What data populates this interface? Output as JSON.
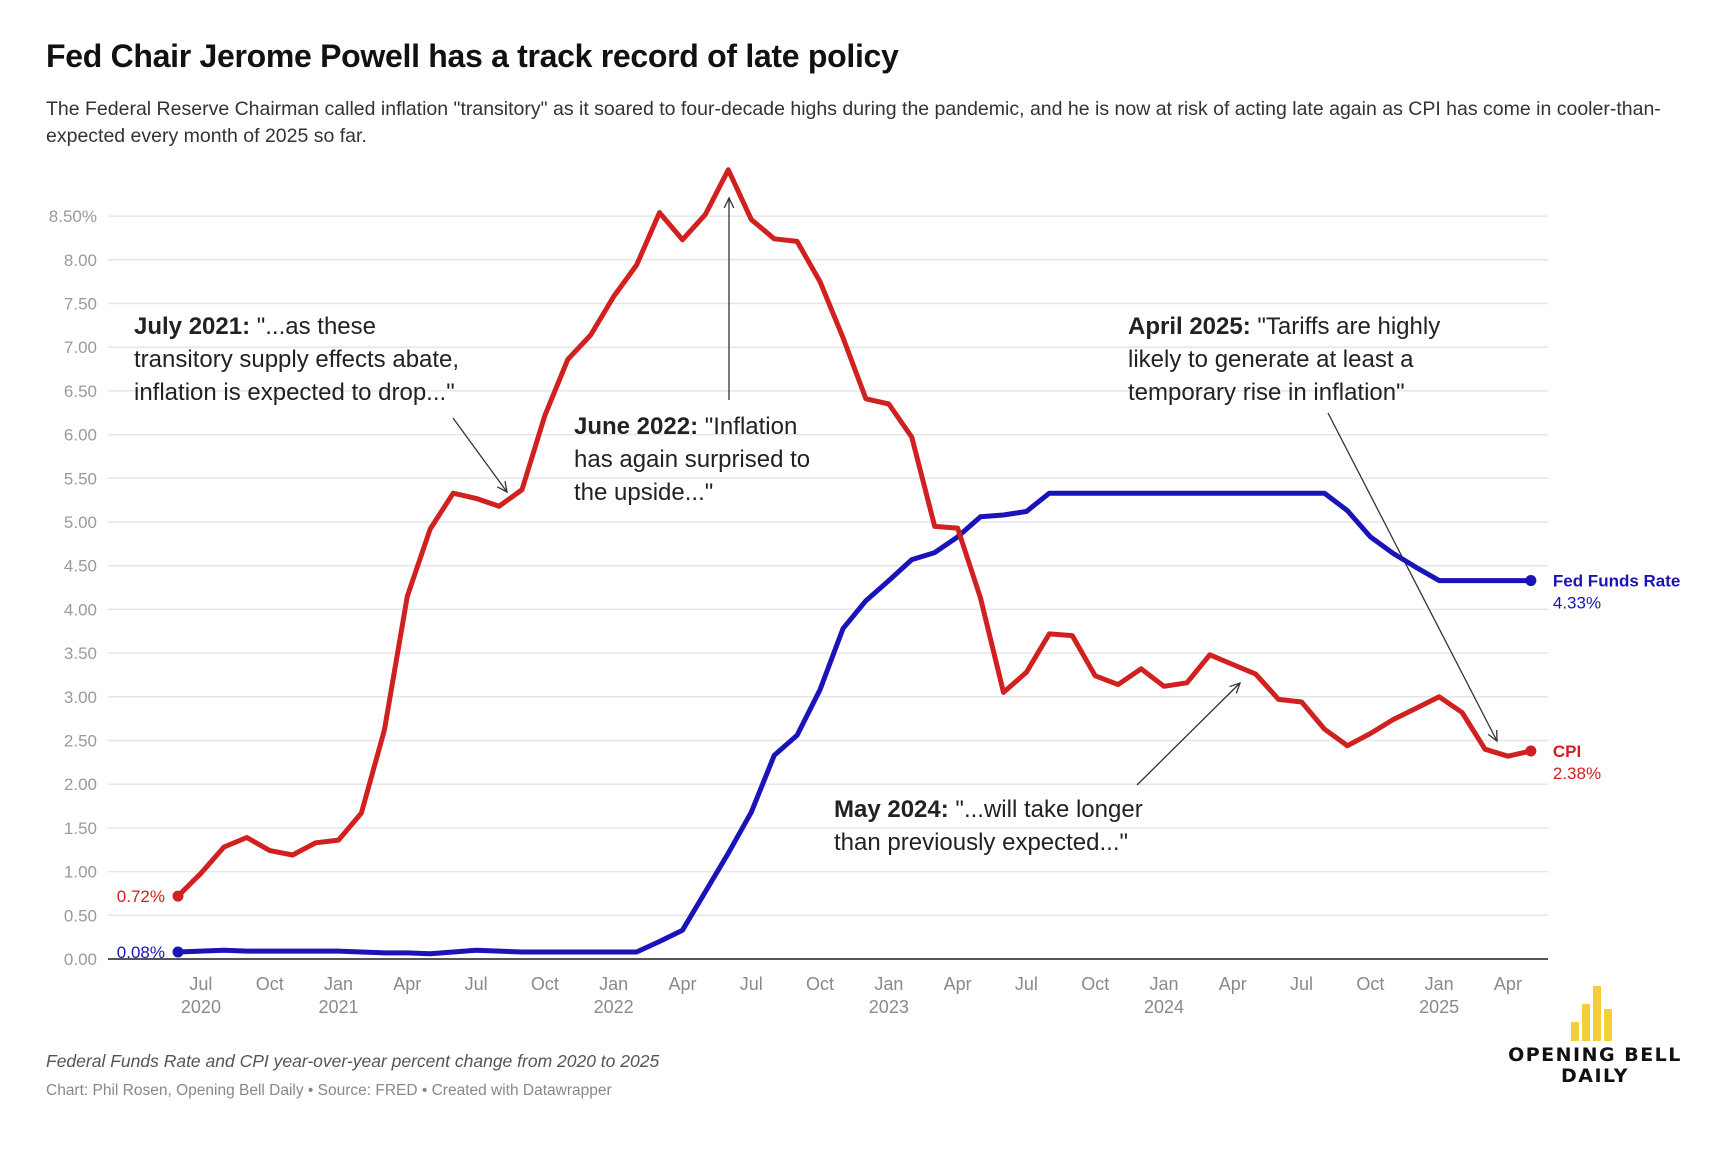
{
  "header": {
    "title": "Fed Chair Jerome Powell has a track record of late policy",
    "subtitle": "The Federal Reserve Chairman called inflation \"transitory\" as it soared to four-decade highs during the pandemic, and he is now at risk of acting late again as CPI has come in cooler-than-expected every month of 2025 so far."
  },
  "footer": {
    "note": "Federal Funds Rate and CPI year-over-year percent change from 2020 to 2025",
    "credit": "Chart: Phil Rosen, Opening Bell Daily • Source: FRED • Created with Datawrapper"
  },
  "logo": {
    "line1": "OPENING BELL",
    "line2": "DAILY",
    "color": "#f5cf3a",
    "icon": "bar-chart-icon"
  },
  "colors": {
    "cpi": "#d0201f",
    "fed": "#1a14b8",
    "grid": "#e6e6e6",
    "axis": "#555555"
  },
  "chart_data": {
    "type": "line",
    "title": "Fed Chair Jerome Powell has a track record of late policy",
    "xlabel": "",
    "ylabel": "",
    "ylim": [
      0,
      8.5
    ],
    "grid": true,
    "y_ticks": [
      "0.00",
      "0.50",
      "1.00",
      "1.50",
      "2.00",
      "2.50",
      "3.00",
      "3.50",
      "4.00",
      "4.50",
      "5.00",
      "5.50",
      "6.00",
      "6.50",
      "7.00",
      "7.50",
      "8.00",
      "8.50%"
    ],
    "y_tick_values": [
      0,
      0.5,
      1,
      1.5,
      2,
      2.5,
      3,
      3.5,
      4,
      4.5,
      5,
      5.5,
      6,
      6.5,
      7,
      7.5,
      8,
      8.5
    ],
    "x_start": "2020-06",
    "x": [
      "2020-06",
      "2020-07",
      "2020-08",
      "2020-09",
      "2020-10",
      "2020-11",
      "2020-12",
      "2021-01",
      "2021-02",
      "2021-03",
      "2021-04",
      "2021-05",
      "2021-06",
      "2021-07",
      "2021-08",
      "2021-09",
      "2021-10",
      "2021-11",
      "2021-12",
      "2022-01",
      "2022-02",
      "2022-03",
      "2022-04",
      "2022-05",
      "2022-06",
      "2022-07",
      "2022-08",
      "2022-09",
      "2022-10",
      "2022-11",
      "2022-12",
      "2023-01",
      "2023-02",
      "2023-03",
      "2023-04",
      "2023-05",
      "2023-06",
      "2023-07",
      "2023-08",
      "2023-09",
      "2023-10",
      "2023-11",
      "2023-12",
      "2024-01",
      "2024-02",
      "2024-03",
      "2024-04",
      "2024-05",
      "2024-06",
      "2024-07",
      "2024-08",
      "2024-09",
      "2024-10",
      "2024-11",
      "2024-12",
      "2025-01",
      "2025-02",
      "2025-03",
      "2025-04",
      "2025-05"
    ],
    "x_ticks": [
      {
        "month": "2020-07",
        "label": "Jul",
        "year": "2020"
      },
      {
        "month": "2020-10",
        "label": "Oct",
        "year": ""
      },
      {
        "month": "2021-01",
        "label": "Jan",
        "year": "2021"
      },
      {
        "month": "2021-04",
        "label": "Apr",
        "year": ""
      },
      {
        "month": "2021-07",
        "label": "Jul",
        "year": ""
      },
      {
        "month": "2021-10",
        "label": "Oct",
        "year": ""
      },
      {
        "month": "2022-01",
        "label": "Jan",
        "year": "2022"
      },
      {
        "month": "2022-04",
        "label": "Apr",
        "year": ""
      },
      {
        "month": "2022-07",
        "label": "Jul",
        "year": ""
      },
      {
        "month": "2022-10",
        "label": "Oct",
        "year": ""
      },
      {
        "month": "2023-01",
        "label": "Jan",
        "year": "2023"
      },
      {
        "month": "2023-04",
        "label": "Apr",
        "year": ""
      },
      {
        "month": "2023-07",
        "label": "Jul",
        "year": ""
      },
      {
        "month": "2023-10",
        "label": "Oct",
        "year": ""
      },
      {
        "month": "2024-01",
        "label": "Jan",
        "year": "2024"
      },
      {
        "month": "2024-04",
        "label": "Apr",
        "year": ""
      },
      {
        "month": "2024-07",
        "label": "Jul",
        "year": ""
      },
      {
        "month": "2024-10",
        "label": "Oct",
        "year": ""
      },
      {
        "month": "2025-01",
        "label": "Jan",
        "year": "2025"
      },
      {
        "month": "2025-04",
        "label": "Apr",
        "year": ""
      }
    ],
    "series": [
      {
        "name": "CPI",
        "color": "#d0201f",
        "start_label": "0.72%",
        "end_label": "2.38%",
        "values": [
          0.72,
          0.98,
          1.28,
          1.39,
          1.24,
          1.19,
          1.33,
          1.36,
          1.67,
          2.62,
          4.15,
          4.92,
          5.33,
          5.27,
          5.18,
          5.37,
          6.22,
          6.86,
          7.14,
          7.58,
          7.94,
          8.54,
          8.23,
          8.52,
          9.03,
          8.46,
          8.24,
          8.21,
          7.75,
          7.11,
          6.41,
          6.35,
          5.97,
          4.95,
          4.93,
          4.13,
          3.05,
          3.28,
          3.72,
          3.7,
          3.24,
          3.14,
          3.32,
          3.12,
          3.16,
          3.48,
          3.37,
          3.26,
          2.97,
          2.94,
          2.63,
          2.44,
          2.58,
          2.74,
          2.87,
          3.0,
          2.82,
          2.4,
          2.32,
          2.38
        ]
      },
      {
        "name": "Fed Funds Rate",
        "color": "#1a14b8",
        "start_label": "0.08%",
        "end_label": "4.33%",
        "values": [
          0.08,
          0.09,
          0.1,
          0.09,
          0.09,
          0.09,
          0.09,
          0.09,
          0.08,
          0.07,
          0.07,
          0.06,
          0.08,
          0.1,
          0.09,
          0.08,
          0.08,
          0.08,
          0.08,
          0.08,
          0.08,
          0.2,
          0.33,
          0.77,
          1.21,
          1.68,
          2.33,
          2.56,
          3.08,
          3.78,
          4.1,
          4.33,
          4.57,
          4.65,
          4.83,
          5.06,
          5.08,
          5.12,
          5.33,
          5.33,
          5.33,
          5.33,
          5.33,
          5.33,
          5.33,
          5.33,
          5.33,
          5.33,
          5.33,
          5.33,
          5.33,
          5.13,
          4.83,
          4.64,
          4.48,
          4.33,
          4.33,
          4.33,
          4.33,
          4.33
        ]
      }
    ],
    "annotations": [
      {
        "bold": "July 2021:",
        "lines": [
          "\"...as these",
          "transitory supply effects abate,",
          "inflation is expected to drop...\""
        ],
        "target": "2021-08"
      },
      {
        "bold": "June 2022:",
        "lines": [
          "\"Inflation",
          "has again surprised to",
          "the upside...\""
        ],
        "target": "2022-06"
      },
      {
        "bold": "April 2025:",
        "lines": [
          "\"Tariffs are highly",
          "likely to generate at least a",
          "temporary rise in inflation\""
        ],
        "target": "2025-03"
      },
      {
        "bold": "May 2024:",
        "lines": [
          "\"...will take longer",
          "than previously expected...\""
        ],
        "target": "2024-04"
      }
    ]
  }
}
